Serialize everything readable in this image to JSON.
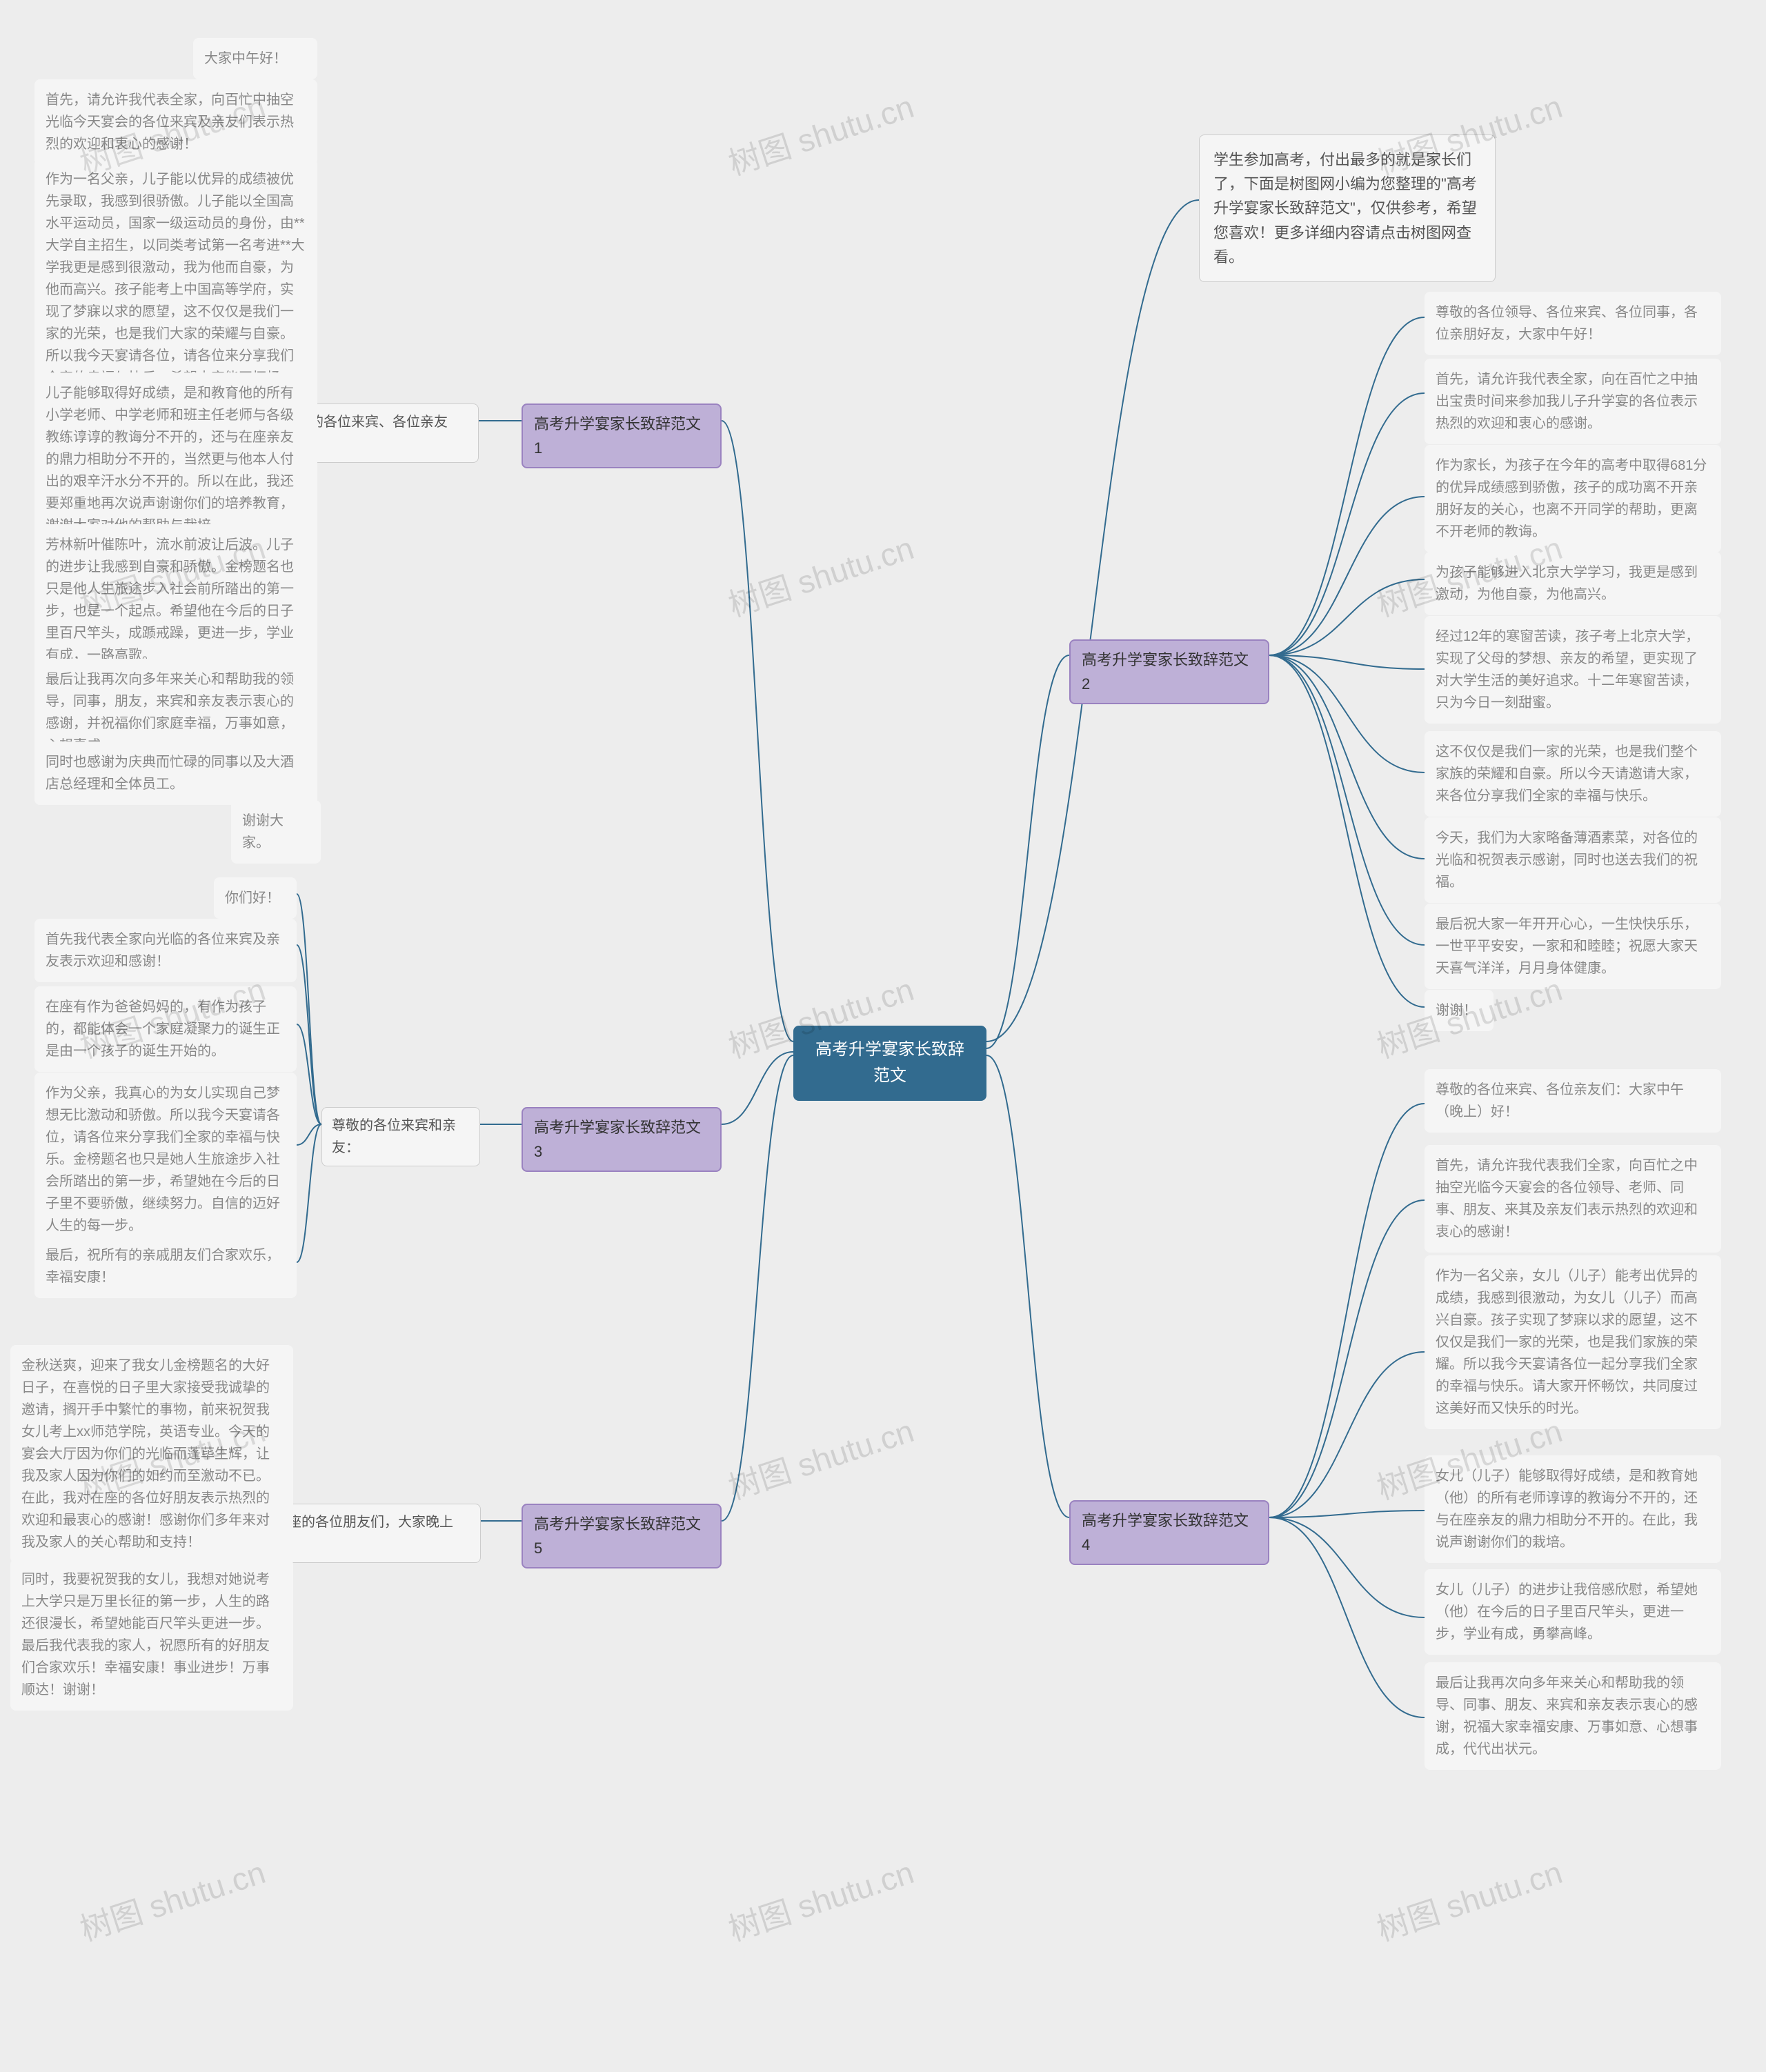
{
  "background": "#ededed",
  "root": {
    "label": "高考升学宴家长致辞范文",
    "bg": "#326b8f",
    "color": "#ffffff"
  },
  "branch_style": {
    "bg": "#beb0d7",
    "border": "#9a82c0"
  },
  "level2_style": {
    "bg": "#f5f5f5",
    "border": "#cccccc"
  },
  "leaf_style": {
    "bg": "#f5f5f5",
    "color": "#888888"
  },
  "connector_color": "#326b8f",
  "connector_width": 2,
  "intro": "学生参加高考，付出最多的就是家长们了，下面是树图网小编为您整理的\"高考升学宴家长致辞范文\"，仅供参考，希望您喜欢！更多详细内容请点击树图网查看。",
  "branches": {
    "b1": {
      "label": "高考升学宴家长致辞范文1",
      "side": "left",
      "level2": "尊敬的各位来宾、各位亲友们：",
      "leaves": [
        "大家中午好！",
        "首先，请允许我代表全家，向百忙中抽空光临今天宴会的各位来宾及亲友们表示热烈的欢迎和衷心的感谢！",
        "作为一名父亲，儿子能以优异的成绩被优先录取，我感到很骄傲。儿子能以全国高水平运动员，国家一级运动员的身份，由**大学自主招生，以同类考试第一名考进**大学我更是感到很激动，我为他而自豪，为他而高兴。孩子能考上中国高等学府，实现了梦寐以求的愿望，这不仅仅是我们一家的光荣，也是我们大家的荣耀与自豪。所以我今天宴请各位，请各位来分享我们全家的幸福与快乐。希望大家能开怀畅饮，共同度过美好的一天。",
        "儿子能够取得好成绩，是和教育他的所有小学老师、中学老师和班主任老师与各级教练谆谆的教诲分不开的，还与在座亲友的鼎力相助分不开的，当然更与他本人付出的艰辛汗水分不开的。所以在此，我还要郑重地再次说声谢谢你们的培养教育，谢谢大家对他的帮助与栽培。",
        "芳林新叶催陈叶，流水前波让后波。儿子的进步让我感到自豪和骄傲。金榜题名也只是他人生旅途步入社会前所踏出的第一步，也是一个起点。希望他在今后的日子里百尺竿头，成踬戒躁，更进一步，学业有成，一路高歌。",
        "最后让我再次向多年来关心和帮助我的领导，同事，朋友，来宾和亲友表示衷心的感谢，并祝福你们家庭幸福，万事如意，心想事成。",
        "同时也感谢为庆典而忙碌的同事以及大酒店总经理和全体员工。",
        "谢谢大家。"
      ]
    },
    "b2": {
      "label": "高考升学宴家长致辞范文2",
      "side": "right",
      "level2": "",
      "leaves": [
        "尊敬的各位领导、各位来宾、各位同事，各位亲朋好友，大家中午好！",
        "首先，请允许我代表全家，向在百忙之中抽出宝贵时间来参加我儿子升学宴的各位表示热烈的欢迎和衷心的感谢。",
        "作为家长，为孩子在今年的高考中取得681分的优异成绩感到骄傲，孩子的成功离不开亲朋好友的关心，也离不开同学的帮助，更离不开老师的教诲。",
        "为孩子能够进入北京大学学习，我更是感到激动，为他自豪，为他高兴。",
        "经过12年的寒窗苦读，孩子考上北京大学，实现了父母的梦想、亲友的希望，更实现了对大学生活的美好追求。十二年寒窗苦读，只为今日一刻甜蜜。",
        "这不仅仅是我们一家的光荣，也是我们整个家族的荣耀和自豪。所以今天请邀请大家，来各位分享我们全家的幸福与快乐。",
        "今天，我们为大家略备薄酒素菜，对各位的光临和祝贺表示感谢，同时也送去我们的祝福。",
        "最后祝大家一年开开心心，一生快快乐乐，一世平平安安，一家和和睦睦；祝愿大家天天喜气洋洋，月月身体健康。",
        "谢谢！"
      ]
    },
    "b3": {
      "label": "高考升学宴家长致辞范文3",
      "side": "left",
      "level2": "尊敬的各位来宾和亲友：",
      "leaves": [
        "你们好！",
        "首先我代表全家向光临的各位来宾及亲友表示欢迎和感谢！",
        "在座有作为爸爸妈妈的，有作为孩子的，都能体会一个家庭凝聚力的诞生正是由一个孩子的诞生开始的。",
        "作为父亲，我真心的为女儿实现自己梦想无比激动和骄傲。所以我今天宴请各位，请各位来分享我们全家的幸福与快乐。金榜题名也只是她人生旅途步入社会所踏出的第一步，希望她在今后的日子里不要骄傲，继续努力。自信的迈好人生的每一步。",
        "最后，祝所有的亲戚朋友们合家欢乐，幸福安康！"
      ]
    },
    "b4": {
      "label": "高考升学宴家长致辞范文4",
      "side": "right",
      "level2": "",
      "leaves": [
        "尊敬的各位来宾、各位亲友们：大家中午（晚上）好！",
        "首先，请允许我代表我们全家，向百忙之中抽空光临今天宴会的各位领导、老师、同事、朋友、来其及亲友们表示热烈的欢迎和衷心的感谢！",
        "作为一名父亲，女儿（儿子）能考出优异的成绩，我感到很激动，为女儿（儿子）而高兴自豪。孩子实现了梦寐以求的愿望，这不仅仅是我们一家的光荣，也是我们家族的荣耀。所以我今天宴请各位一起分享我们全家的幸福与快乐。请大家开怀畅饮，共同度过这美好而又快乐的时光。",
        "女儿（儿子）能够取得好成绩，是和教育她（他）的所有老师谆谆的教诲分不开的，还与在座亲友的鼎力相助分不开的。在此，我说声谢谢你们的栽培。",
        "女儿（儿子）的进步让我倍感欣慰，希望她（他）在今后的日子里百尺竿头，更进一步，学业有成，勇攀高峰。",
        "最后让我再次向多年来关心和帮助我的领导、同事、朋友、来宾和亲友表示衷心的感谢，祝福大家幸福安康、万事如意、心想事成，代代出状元。"
      ]
    },
    "b5": {
      "label": "高考升学宴家长致辞范文5",
      "side": "left",
      "level2": "在座的各位朋友们，大家晚上好：",
      "leaves": [
        "金秋送爽，迎来了我女儿金榜题名的大好日子，在喜悦的日子里大家接受我诚挚的邀请，搁开手中繁忙的事物，前来祝贺我女儿考上xx师范学院，英语专业。今天的宴会大厅因为你们的光临而蓬荜生辉，让我及家人因为你们的如约而至激动不已。在此，我对在座的各位好朋友表示热烈的欢迎和最衷心的感谢！感谢你们多年来对我及家人的关心帮助和支持！",
        "同时，我要祝贺我的女儿，我想对她说考上大学只是万里长征的第一步，人生的路还很漫长，希望她能百尺竿头更进一步。最后我代表我的家人，祝愿所有的好朋友们合家欢乐！幸福安康！事业进步！万事顺达！谢谢！"
      ]
    }
  },
  "watermark_text": "树图 shutu.cn"
}
